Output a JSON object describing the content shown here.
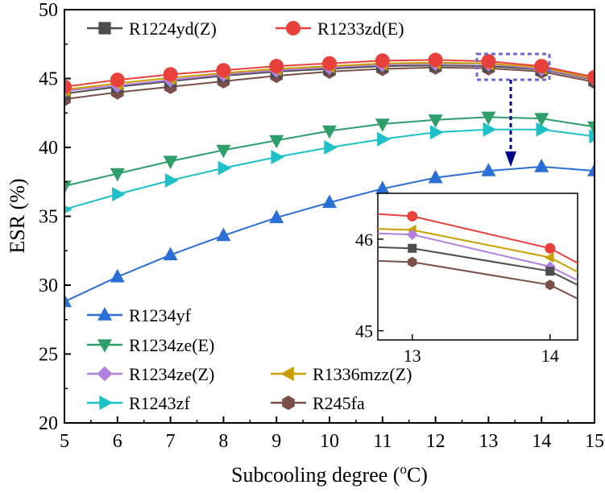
{
  "chart_data": {
    "type": "line",
    "title": "",
    "xlabel": "Subcooling degree (",
    "xlabel_sup": "o",
    "xlabel_suffix": "C)",
    "ylabel": "ESR (%)",
    "xlim": [
      5,
      15
    ],
    "ylim": [
      20,
      50
    ],
    "x": [
      5,
      6,
      7,
      8,
      9,
      10,
      11,
      12,
      13,
      14,
      15
    ],
    "x_ticks": [
      "5",
      "6",
      "7",
      "8",
      "9",
      "10",
      "11",
      "12",
      "13",
      "14",
      "15"
    ],
    "y_ticks": [
      "20",
      "25",
      "30",
      "35",
      "40",
      "45",
      "50"
    ],
    "grid": false,
    "series": [
      {
        "name": "R1224yd(Z)",
        "color": "#4d4d4d",
        "marker": "square",
        "values": [
          43.9,
          44.4,
          44.8,
          45.2,
          45.5,
          45.7,
          45.9,
          45.95,
          45.9,
          45.65,
          44.9
        ]
      },
      {
        "name": "R1233zd(E)",
        "color": "#e8413c",
        "marker": "circle",
        "values": [
          44.4,
          44.9,
          45.3,
          45.6,
          45.9,
          46.1,
          46.3,
          46.35,
          46.25,
          45.9,
          45.1
        ]
      },
      {
        "name": "R1234yf",
        "color": "#2b6fd6",
        "marker": "triangle-up",
        "values": [
          28.8,
          30.6,
          32.2,
          33.6,
          34.9,
          36.0,
          37.0,
          37.8,
          38.3,
          38.6,
          38.3
        ]
      },
      {
        "name": "R1234ze(E)",
        "color": "#2e9e6b",
        "marker": "triangle-down",
        "values": [
          37.2,
          38.1,
          39.0,
          39.8,
          40.5,
          41.2,
          41.7,
          42.0,
          42.2,
          42.1,
          41.5
        ]
      },
      {
        "name": "R1234ze(Z)",
        "color": "#b07fe0",
        "marker": "diamond",
        "values": [
          44.1,
          44.5,
          44.9,
          45.3,
          45.6,
          45.8,
          46.0,
          46.1,
          46.05,
          45.7,
          44.95
        ]
      },
      {
        "name": "R1336mzz(Z)",
        "color": "#c9a000",
        "marker": "triangle-left",
        "values": [
          44.2,
          44.65,
          45.05,
          45.4,
          45.7,
          45.9,
          46.1,
          46.15,
          46.1,
          45.8,
          45.0
        ]
      },
      {
        "name": "R1243zf",
        "color": "#1fc1c9",
        "marker": "triangle-right",
        "values": [
          35.5,
          36.6,
          37.6,
          38.5,
          39.3,
          40.0,
          40.6,
          41.1,
          41.3,
          41.3,
          40.8
        ]
      },
      {
        "name": "R245fa",
        "color": "#7a4f4a",
        "marker": "hexagon",
        "values": [
          43.5,
          44.0,
          44.4,
          44.8,
          45.2,
          45.5,
          45.7,
          45.8,
          45.75,
          45.5,
          44.75
        ]
      }
    ],
    "legend_top": {
      "placement": "top",
      "entries": [
        "R1224yd(Z)",
        "R1233zd(E)"
      ]
    },
    "legend_bottom": {
      "placement": "bottom-left",
      "entries": [
        "R1234yf",
        "R1234ze(E)",
        "R1234ze(Z)",
        "R1336mzz(Z)",
        "R1243zf",
        "R245fa"
      ]
    },
    "inset": {
      "xlim": [
        12.75,
        14.2
      ],
      "ylim": [
        44.9,
        46.5
      ],
      "x_ticks": [
        "13",
        "14"
      ],
      "y_ticks": [
        "45",
        "46"
      ],
      "zoom_region": {
        "x": [
          13,
          14
        ],
        "y": [
          45.4,
          46.4
        ]
      },
      "placement": "bottom-right",
      "series": [
        "R1233zd(E)",
        "R1336mzz(Z)",
        "R1234ze(Z)",
        "R1224yd(Z)",
        "R245fa"
      ]
    }
  }
}
